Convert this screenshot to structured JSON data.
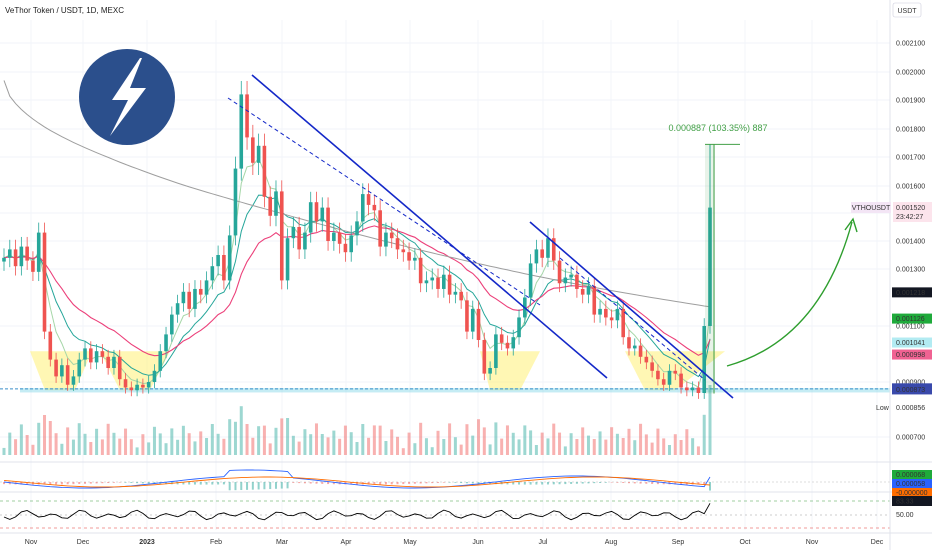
{
  "header": {
    "title": "VeThor Token / USDT, 1D, MEXC",
    "currency": "USDT"
  },
  "colors": {
    "up": "#26a69a",
    "down": "#ef5350",
    "trendline": "#1428c8",
    "support": "#7fd4e6",
    "pattern": "#fff176",
    "ema_fast": "#a5d6a7",
    "ema_mid": "#26a69a",
    "ema_slow": "#ec407a",
    "sma_long": "#9e9e9e",
    "measure": "#43a047",
    "arrow": "#2e9e2e",
    "logo": "#2b4f8c"
  },
  "icons": {
    "logo": "lightning-bolt-icon"
  },
  "chart_data": {
    "type": "candlestick",
    "symbol": "VTHOUSDT",
    "y_ticks": [
      "0.002100",
      "0.002000",
      "0.001900",
      "0.001800",
      "0.001700",
      "0.001600",
      "0.001500",
      "0.001400",
      "0.001300",
      "0.001100",
      "0.000900",
      "0.000700"
    ],
    "x_labels": [
      "Nov",
      "Dec",
      "2023",
      "Feb",
      "Mar",
      "Apr",
      "May",
      "Jun",
      "Jul",
      "Aug",
      "Sep",
      "Oct",
      "Nov",
      "Dec"
    ],
    "current_price": {
      "symbol": "VTHOUSDT",
      "price": "0.001520",
      "countdown": "23:42:27"
    },
    "price_tags": [
      {
        "label": "0.001218",
        "y": 0.001218,
        "bg": "#131722",
        "fg": "#ffffff"
      },
      {
        "label": "0.001126",
        "y": 0.001126,
        "bg": "#1faa3b",
        "fg": "#ffffff"
      },
      {
        "label": "0.001041",
        "y": 0.001041,
        "bg": "#b2ebf2",
        "fg": "#1a2a40"
      },
      {
        "label": "0.000998",
        "y": 0.000998,
        "bg": "#f06292",
        "fg": "#ffffff"
      },
      {
        "label": "0.000877",
        "y": 0.000877,
        "bg": "#3949ab",
        "fg": "#ffffff"
      },
      {
        "label": "0.000873",
        "y": 0.000873,
        "bg": "#3949ab",
        "fg": "#ffffff"
      }
    ],
    "low_label": {
      "text": "Low",
      "value": "0.000856"
    },
    "measurement": {
      "text": "0.000887 (103.35%) 887",
      "from": 0.000858,
      "to": 0.001745
    },
    "support_zone": [
      0.000862,
      0.000878
    ],
    "macd_tags": [
      "0.000068",
      "0.000058",
      "-0.000000"
    ],
    "rsi_tags": [
      "83.33",
      "50.00"
    ],
    "series": [
      {
        "name": "",
        "close": [
          0.00134,
          0.00137,
          0.00131,
          0.00138,
          0.00133,
          0.00129,
          0.00143,
          0.00108,
          0.00098,
          0.00092,
          0.00096,
          0.00089,
          0.00092,
          0.00098,
          0.00102,
          0.00097,
          0.00101,
          0.00099,
          0.00095,
          0.00099,
          0.00091,
          0.00088,
          0.00087,
          0.00089,
          0.00088,
          0.0009,
          0.00094,
          0.00101,
          0.00107,
          0.00114,
          0.00118,
          0.00122,
          0.00116,
          0.00123,
          0.00121,
          0.00126,
          0.00131,
          0.00135,
          0.00126,
          0.00142,
          0.00166,
          0.00192,
          0.00177,
          0.00168,
          0.00174,
          0.00156,
          0.00149,
          0.00158,
          0.00126,
          0.00141,
          0.00145,
          0.00137,
          0.00143,
          0.00154,
          0.00147,
          0.00152,
          0.0014,
          0.00143,
          0.00139,
          0.00136,
          0.00142,
          0.00147,
          0.00157,
          0.00153,
          0.00151,
          0.00138,
          0.00143,
          0.00141,
          0.00137,
          0.00136,
          0.00133,
          0.00134,
          0.00125,
          0.00126,
          0.00127,
          0.00123,
          0.00128,
          0.00121,
          0.00122,
          0.00119,
          0.00108,
          0.00116,
          0.00105,
          0.00093,
          0.00095,
          0.00107,
          0.00104,
          0.00102,
          0.00106,
          0.00113,
          0.0012,
          0.00132,
          0.00137,
          0.00134,
          0.00141,
          0.00133,
          0.00125,
          0.00127,
          0.00128,
          0.00123,
          0.00121,
          0.00124,
          0.00114,
          0.00116,
          0.00113,
          0.00112,
          0.00116,
          0.00106,
          0.00102,
          0.00103,
          0.00099,
          0.00097,
          0.00094,
          0.00091,
          0.00089,
          0.00094,
          0.00093,
          0.00088,
          0.00087,
          0.00088,
          0.00086,
          0.0011,
          0.00152
        ]
      }
    ]
  }
}
